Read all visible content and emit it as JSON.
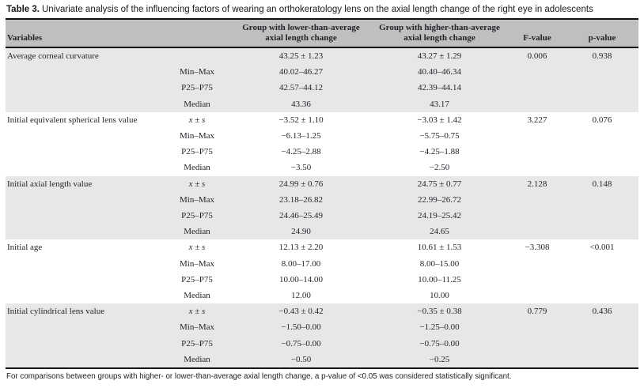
{
  "title": {
    "label": "Table 3.",
    "text": "Univariate analysis of the influencing factors of wearing an orthokeratology lens on the axial length change of the right eye in adolescents"
  },
  "colors": {
    "header_bg": "#bfbfbf",
    "row_shade": "#e7e7e7",
    "rule": "#121212"
  },
  "table": {
    "headers": {
      "variables": "Variables",
      "stat": "",
      "lower_line1": "Group with lower-than-average",
      "lower_line2": "axial length change",
      "higher_line1": "Group with higher-than-average",
      "higher_line2": "axial length change",
      "f": "F-value",
      "p": "p-value"
    },
    "blocks": [
      {
        "variable": "Average corneal curvature",
        "rows": [
          {
            "stat": "",
            "lower": "43.25 ± 1.23",
            "higher": "43.27 ± 1.29",
            "f": "0.006",
            "p": "0.938"
          },
          {
            "stat": "Min–Max",
            "lower": "40.02–46.27",
            "higher": "40.40–46.34",
            "f": "",
            "p": ""
          },
          {
            "stat": "P25–P75",
            "lower": "42.57–44.12",
            "higher": "42.39–44.14",
            "f": "",
            "p": ""
          },
          {
            "stat": "Median",
            "lower": "43.36",
            "higher": "43.17",
            "f": "",
            "p": ""
          }
        ]
      },
      {
        "variable": "Initial equivalent spherical lens value",
        "rows": [
          {
            "stat": "x ± s",
            "lower": "−3.52 ± 1.10",
            "higher": "−3.03 ± 1.42",
            "f": "3.227",
            "p": "0.076"
          },
          {
            "stat": "Min–Max",
            "lower": "−6.13–1.25",
            "higher": "−5.75–0.75",
            "f": "",
            "p": ""
          },
          {
            "stat": "P25–P75",
            "lower": "−4.25–2.88",
            "higher": "−4.25–1.88",
            "f": "",
            "p": ""
          },
          {
            "stat": "Median",
            "lower": "−3.50",
            "higher": "−2.50",
            "f": "",
            "p": ""
          }
        ]
      },
      {
        "variable": "Initial axial length value",
        "rows": [
          {
            "stat": "x ± s",
            "lower": "24.99 ± 0.76",
            "higher": "24.75 ± 0.77",
            "f": "2.128",
            "p": "0.148"
          },
          {
            "stat": "Min–Max",
            "lower": "23.18–26.82",
            "higher": "22.99–26.72",
            "f": "",
            "p": ""
          },
          {
            "stat": "P25–P75",
            "lower": "24.46–25.49",
            "higher": "24.19–25.42",
            "f": "",
            "p": ""
          },
          {
            "stat": "Median",
            "lower": "24.90",
            "higher": "24.65",
            "f": "",
            "p": ""
          }
        ]
      },
      {
        "variable": "Initial age",
        "rows": [
          {
            "stat": "x ± s",
            "lower": "12.13 ± 2.20",
            "higher": "10.61 ± 1.53",
            "f": "−3.308",
            "p": "<0.001"
          },
          {
            "stat": "Min–Max",
            "lower": "8.00–17.00",
            "higher": "8.00–15.00",
            "f": "",
            "p": ""
          },
          {
            "stat": "P25–P75",
            "lower": "10.00–14.00",
            "higher": "10.00–11.25",
            "f": "",
            "p": ""
          },
          {
            "stat": "Median",
            "lower": "12.00",
            "higher": "10.00",
            "f": "",
            "p": ""
          }
        ]
      },
      {
        "variable": "Initial cylindrical lens value",
        "rows": [
          {
            "stat": "x ± s",
            "lower": "−0.43 ± 0.42",
            "higher": "−0.35 ± 0.38",
            "f": "0.779",
            "p": "0.436"
          },
          {
            "stat": "Min–Max",
            "lower": "−1.50–0.00",
            "higher": "−1.25–0.00",
            "f": "",
            "p": ""
          },
          {
            "stat": "P25–P75",
            "lower": "−0.75–0.00",
            "higher": "−0.75–0.00",
            "f": "",
            "p": ""
          },
          {
            "stat": "Median",
            "lower": "−0.50",
            "higher": "−0.25",
            "f": "",
            "p": ""
          }
        ]
      }
    ],
    "footnote": "For comparisons between groups with higher- or lower-than-average axial length change, a p-value of <0.05 was considered statistically significant."
  }
}
